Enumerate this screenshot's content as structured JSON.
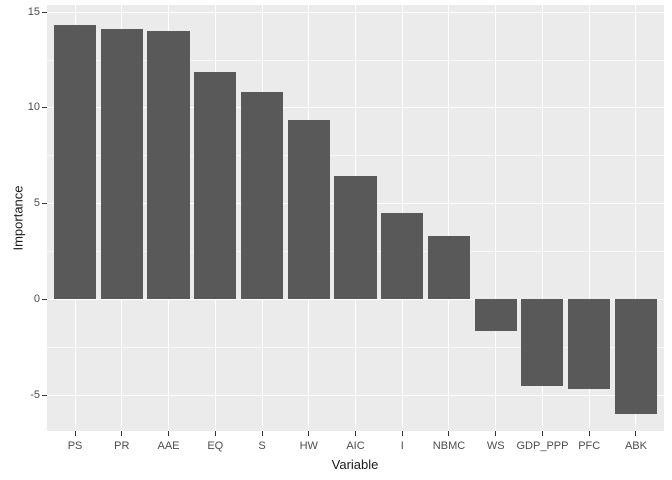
{
  "chart_data": {
    "type": "bar",
    "title": "",
    "xlabel": "Variable",
    "ylabel": "Importance",
    "categories": [
      "PS",
      "PR",
      "AAE",
      "EQ",
      "S",
      "HW",
      "AIC",
      "I",
      "NBMC",
      "WS",
      "GDP_PPP",
      "PFC",
      "ABK"
    ],
    "values": [
      14.3,
      14.1,
      14.0,
      11.85,
      10.8,
      9.35,
      6.4,
      4.5,
      3.3,
      -1.7,
      -4.55,
      -4.7,
      -6.0
    ],
    "ylim": [
      -6.9,
      15.35
    ],
    "yticks": [
      15,
      10,
      5,
      0,
      -5
    ],
    "ytick_labels": [
      "15",
      "10",
      "5",
      "0",
      "-5"
    ],
    "yticks_minor": [
      12.5,
      7.5,
      2.5,
      -2.5
    ],
    "bar_width_fraction": 0.9,
    "grid": "horizontal major+minor, vertical major at category centers; no legend",
    "legend_position": "none",
    "colors": {
      "bar": "#595959",
      "panel_background": "#EBEBEB",
      "gridline": "#FFFFFF",
      "tick_text": "#4D4D4D",
      "axis_title_text": "#1a1a1a",
      "figure_background": "#FFFFFF",
      "tick_mark": "#333333"
    }
  }
}
